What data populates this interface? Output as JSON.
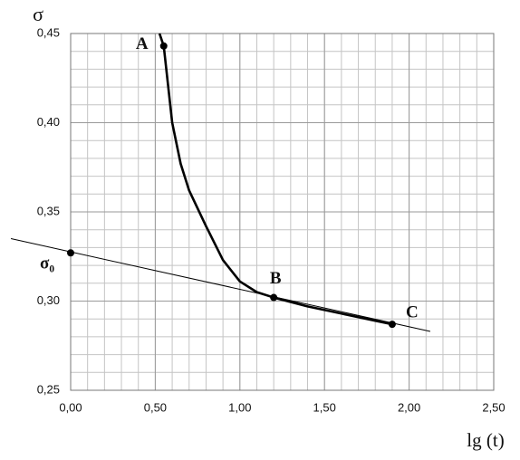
{
  "chart_data": {
    "type": "line",
    "xlabel": "lg (t)",
    "ylabel": "σ",
    "xlim": [
      0,
      2.5
    ],
    "ylim": [
      0.25,
      0.45
    ],
    "xticks": [
      {
        "value": 0,
        "label": "0,00"
      },
      {
        "value": 0.5,
        "label": "0,50"
      },
      {
        "value": 1,
        "label": "1,00"
      },
      {
        "value": 1.5,
        "label": "1,50"
      },
      {
        "value": 2,
        "label": "2,00"
      },
      {
        "value": 2.5,
        "label": "2,50"
      }
    ],
    "yticks": [
      {
        "value": 0.25,
        "label": "0,25"
      },
      {
        "value": 0.3,
        "label": "0,30"
      },
      {
        "value": 0.35,
        "label": "0,35"
      },
      {
        "value": 0.4,
        "label": "0,40"
      },
      {
        "value": 0.45,
        "label": "0,45"
      }
    ],
    "grid": true,
    "minor_grid_step": {
      "x": 0.1,
      "y": 0.01
    },
    "series": [
      {
        "color": "#000000",
        "width": 2.6,
        "x": [
          0.525,
          0.55,
          0.6,
          0.65,
          0.7,
          0.8,
          0.9,
          1.0,
          1.1,
          1.2,
          1.4,
          1.6,
          1.8,
          1.9
        ],
        "values": [
          0.45,
          0.443,
          0.4,
          0.377,
          0.362,
          0.342,
          0.323,
          0.311,
          0.305,
          0.302,
          0.297,
          0.293,
          0.289,
          0.287
        ]
      },
      {
        "color": "#000000",
        "width": 1,
        "x": [
          -0.353,
          2.125
        ],
        "values": [
          0.335,
          0.283
        ]
      }
    ],
    "points": [
      {
        "label": "A",
        "x": 0.55,
        "y": 0.443
      },
      {
        "label": "B",
        "x": 1.2,
        "y": 0.302
      },
      {
        "label": "C",
        "x": 1.9,
        "y": 0.287
      },
      {
        "label": "σ₀",
        "x": 0,
        "y": 0.327
      }
    ]
  }
}
